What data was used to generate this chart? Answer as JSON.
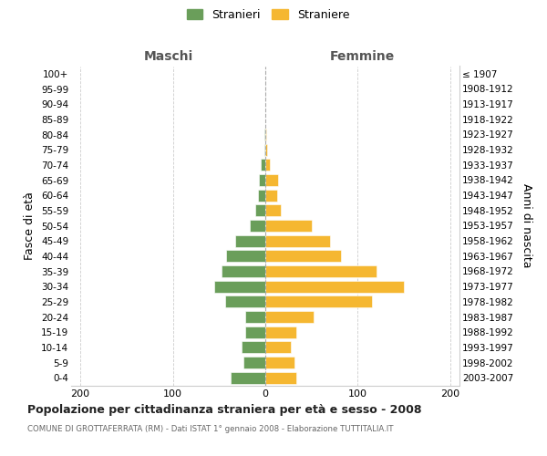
{
  "age_groups": [
    "0-4",
    "5-9",
    "10-14",
    "15-19",
    "20-24",
    "25-29",
    "30-34",
    "35-39",
    "40-44",
    "45-49",
    "50-54",
    "55-59",
    "60-64",
    "65-69",
    "70-74",
    "75-79",
    "80-84",
    "85-89",
    "90-94",
    "95-99",
    "100+"
  ],
  "birth_years": [
    "2003-2007",
    "1998-2002",
    "1993-1997",
    "1988-1992",
    "1983-1987",
    "1978-1982",
    "1973-1977",
    "1968-1972",
    "1963-1967",
    "1958-1962",
    "1953-1957",
    "1948-1952",
    "1943-1947",
    "1938-1942",
    "1933-1937",
    "1928-1932",
    "1923-1927",
    "1918-1922",
    "1913-1917",
    "1908-1912",
    "≤ 1907"
  ],
  "males": [
    37,
    24,
    26,
    22,
    22,
    43,
    55,
    47,
    42,
    33,
    17,
    11,
    8,
    7,
    5,
    1,
    1,
    0,
    0,
    0,
    0
  ],
  "females": [
    34,
    32,
    28,
    34,
    52,
    115,
    150,
    120,
    82,
    70,
    50,
    17,
    13,
    14,
    5,
    2,
    1,
    0,
    0,
    0,
    0
  ],
  "male_color": "#6a9e5a",
  "female_color": "#f5b731",
  "title": "Popolazione per cittadinanza straniera per età e sesso - 2008",
  "subtitle": "COMUNE DI GROTTAFERRATA (RM) - Dati ISTAT 1° gennaio 2008 - Elaborazione TUTTITALIA.IT",
  "ylabel_left": "Fasce di età",
  "ylabel_right": "Anni di nascita",
  "label_maschi": "Maschi",
  "label_femmine": "Femmine",
  "legend_male": "Stranieri",
  "legend_female": "Straniere",
  "xlim": 210,
  "xtick_positions": [
    -200,
    -100,
    0,
    100,
    200
  ]
}
